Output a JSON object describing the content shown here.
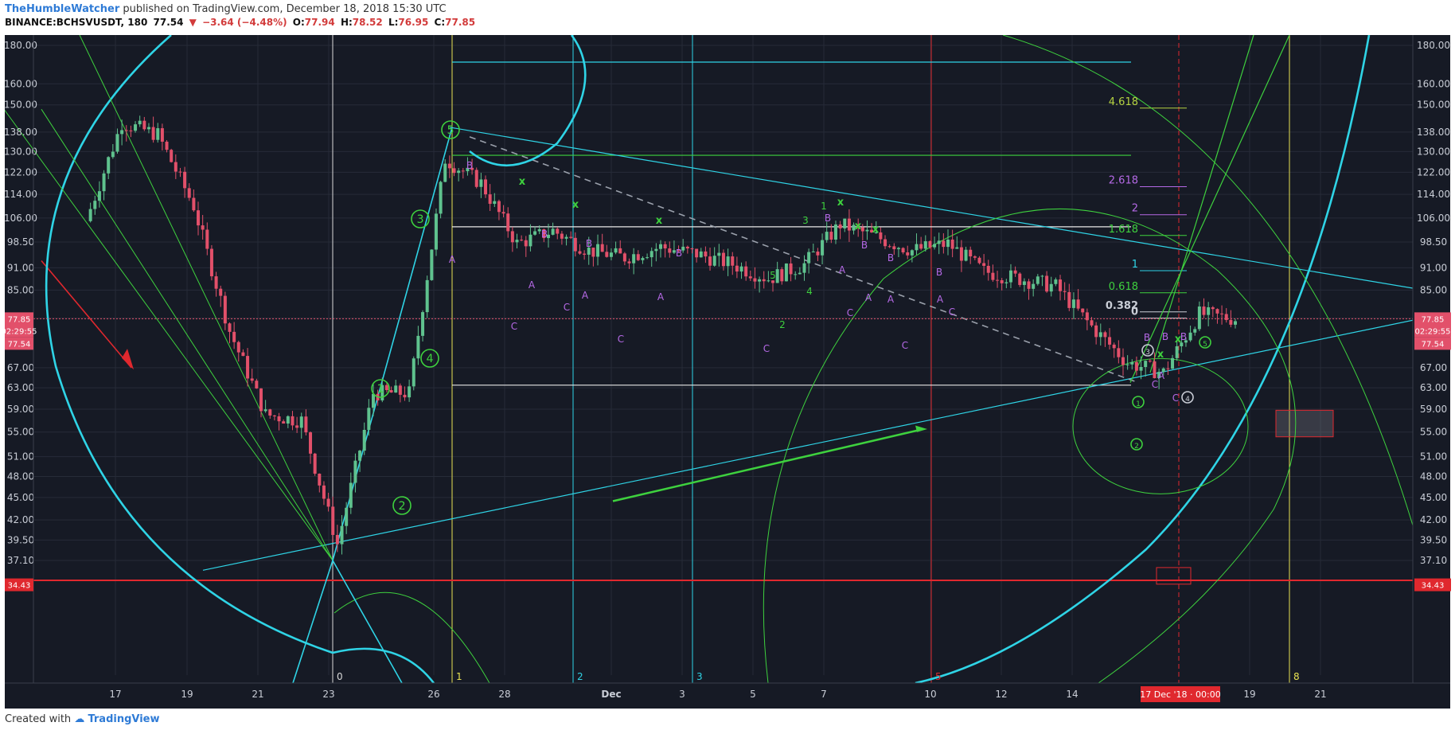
{
  "header": {
    "author": "TheHumbleWatcher",
    "published": "published on TradingView.com, December 18, 2018 15:30 UTC",
    "symbol": "BINANCE:BCHSVUSDT, 180",
    "price": "77.54",
    "down_arrow": "▼",
    "change": "−3.64 (−4.48%)",
    "o_label": "O:",
    "o_value": "77.94",
    "h_label": "H:",
    "h_value": "78.52",
    "l_label": "L:",
    "l_value": "76.95",
    "c_label": "C:",
    "c_value": "77.85"
  },
  "footer": {
    "created_with": "Created with",
    "brand": "TradingView"
  },
  "colors": {
    "bg": "#161a25",
    "up": "#5fc28e",
    "down": "#e2506a",
    "cyan": "#2fd4e6",
    "green": "#3ed13e",
    "yellow": "#e8e252",
    "purple": "#b569e6",
    "red": "#e0282e"
  },
  "chart_data": {
    "type": "candlestick",
    "title": "BINANCE:BCHSVUSDT, 180",
    "y_axis": {
      "scale": "log",
      "range": [
        34.43,
        190
      ],
      "ticks": [
        "180.00",
        "160.00",
        "150.00",
        "138.00",
        "130.00",
        "122.00",
        "114.00",
        "106.00",
        "98.50",
        "91.00",
        "85.00",
        "78.00",
        "67.00",
        "63.00",
        "59.00",
        "55.00",
        "51.00",
        "48.00",
        "45.00",
        "42.00",
        "39.50",
        "37.10"
      ],
      "price_labels": [
        {
          "text": "77.85",
          "color": "#e2506a"
        },
        {
          "text": "02:29:55",
          "color": "#e2506a"
        },
        {
          "text": "77.54",
          "color": "#e2506a"
        },
        {
          "text": "34.43",
          "color": "#e0282e"
        }
      ]
    },
    "x_axis": {
      "ticks": [
        "17",
        "19",
        "21",
        "23",
        "26",
        "28",
        "Dec",
        "3",
        "5",
        "7",
        "10",
        "12",
        "14",
        "19",
        "21"
      ],
      "highlight": "17 Dec '18 · 00:00"
    },
    "candles_summary": {
      "segments": [
        {
          "label": "Nov 16",
          "price": 105
        },
        {
          "label": "Nov 17",
          "price": 142
        },
        {
          "label": "Nov 18",
          "price": 137
        },
        {
          "label": "Nov 19",
          "price": 110
        },
        {
          "label": "Nov 20",
          "price": 75
        },
        {
          "label": "Nov 21",
          "price": 58
        },
        {
          "label": "Nov 22",
          "price": 57
        },
        {
          "label": "Nov 23",
          "price": 39
        },
        {
          "label": "Nov 24",
          "price": 62
        },
        {
          "label": "Nov 25",
          "price": 62
        },
        {
          "label": "Nov 26",
          "price": 127
        },
        {
          "label": "Nov 27",
          "price": 118
        },
        {
          "label": "Nov 28",
          "price": 98
        },
        {
          "label": "Nov 29",
          "price": 102
        },
        {
          "label": "Nov 30",
          "price": 96
        },
        {
          "label": "Dec 1",
          "price": 94
        },
        {
          "label": "Dec 2",
          "price": 97
        },
        {
          "label": "Dec 3",
          "price": 95
        },
        {
          "label": "Dec 4",
          "price": 92
        },
        {
          "label": "Dec 5",
          "price": 88
        },
        {
          "label": "Dec 6",
          "price": 92
        },
        {
          "label": "Dec 7",
          "price": 104
        },
        {
          "label": "Dec 8",
          "price": 100
        },
        {
          "label": "Dec 9",
          "price": 96
        },
        {
          "label": "Dec 10",
          "price": 98
        },
        {
          "label": "Dec 11",
          "price": 90
        },
        {
          "label": "Dec 12",
          "price": 88
        },
        {
          "label": "Dec 13",
          "price": 86
        },
        {
          "label": "Dec 14",
          "price": 76
        },
        {
          "label": "Dec 15",
          "price": 68
        },
        {
          "label": "Dec 16",
          "price": 66
        },
        {
          "label": "Dec 17",
          "price": 79
        },
        {
          "label": "Dec 18",
          "price": 77.85
        }
      ]
    },
    "fib_levels": [
      {
        "label": "4.618",
        "color": "#b5d342"
      },
      {
        "label": "2.618",
        "color": "#b569e6"
      },
      {
        "label": "2",
        "color": "#b569e6"
      },
      {
        "label": "1.618",
        "color": "#3ed13e"
      },
      {
        "label": "1",
        "color": "#2fd4e6"
      },
      {
        "label": "0.618",
        "color": "#3ed13e"
      },
      {
        "label": "0.382",
        "color": "#c9cdd6"
      },
      {
        "label": "0",
        "color": "#c9cdd6"
      }
    ],
    "wave_labels": [
      "1",
      "2",
      "3",
      "4",
      "5"
    ],
    "abc_labels": [
      "A",
      "B",
      "C"
    ],
    "x_marks": "x",
    "vertical_line_numbers": [
      "0",
      "1",
      "2",
      "3",
      "5",
      "8"
    ],
    "grid": true
  }
}
